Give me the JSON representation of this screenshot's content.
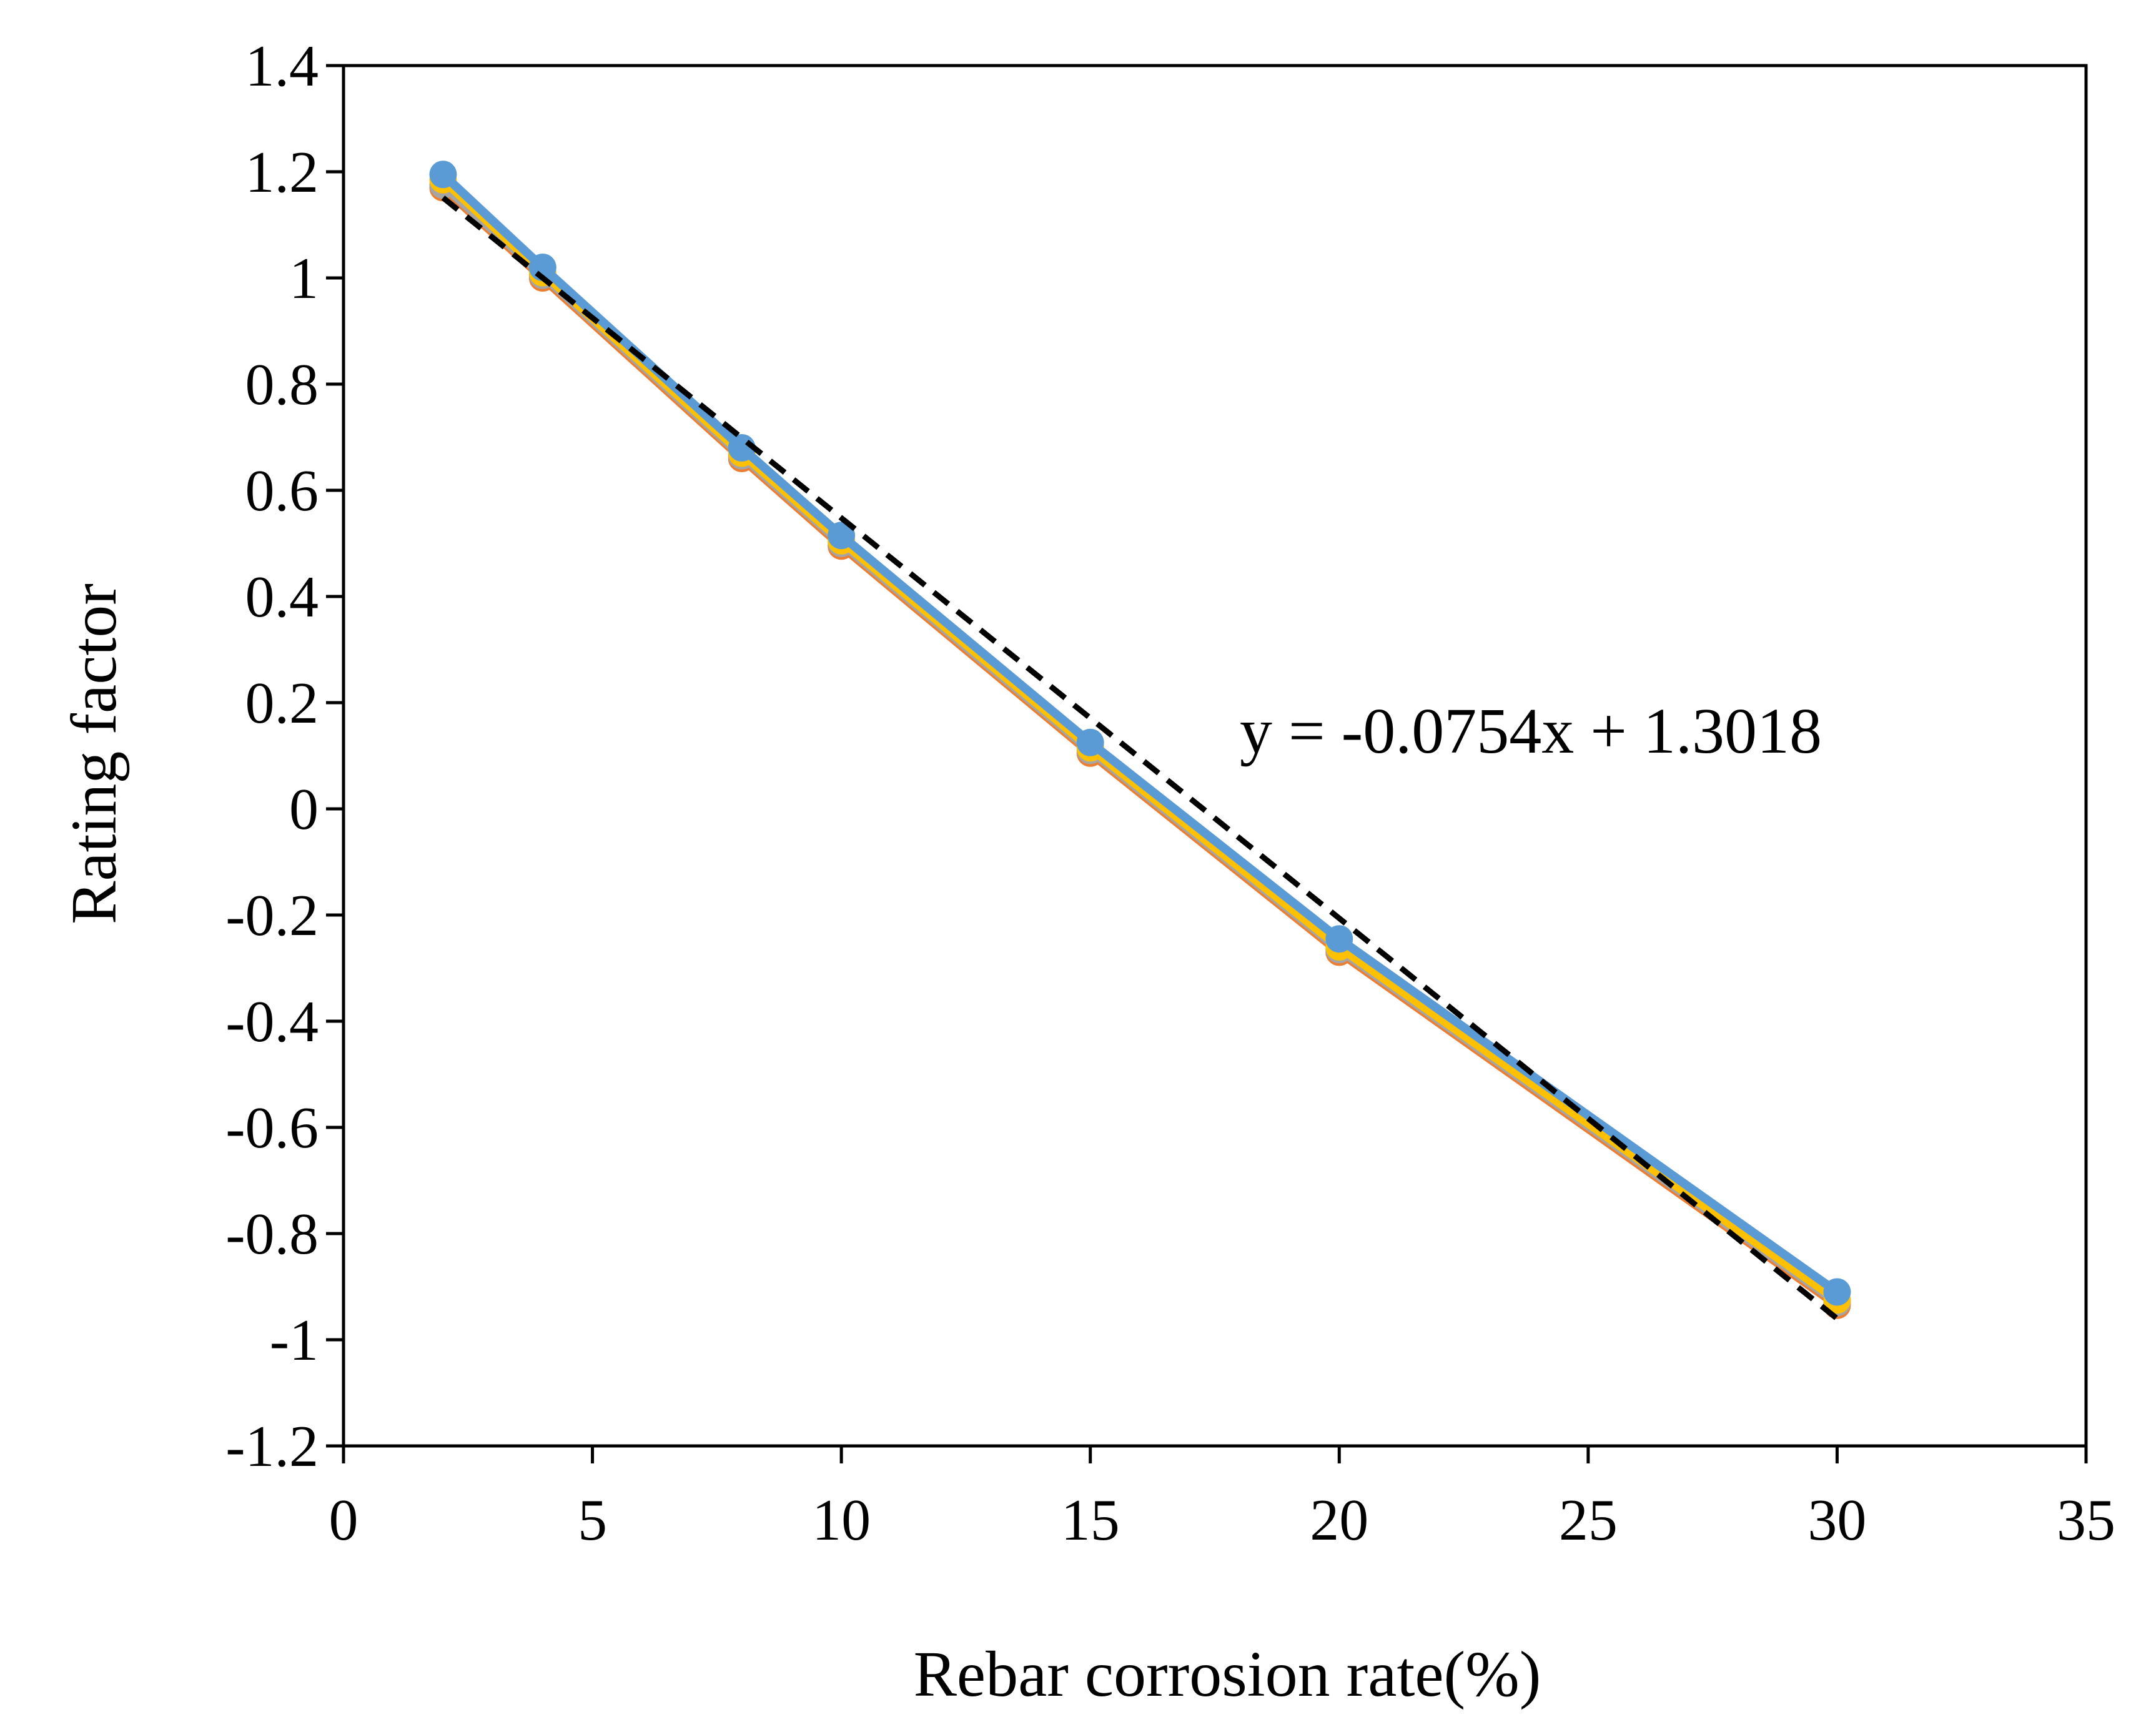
{
  "chart_data": {
    "type": "line",
    "xlabel": "Rebar corrosion rate(%)",
    "ylabel": "Rating factor",
    "xlim": [
      0,
      35
    ],
    "ylim": [
      -1.2,
      1.4
    ],
    "xticks": [
      0,
      5,
      10,
      15,
      20,
      25,
      30,
      35
    ],
    "yticks": [
      -1.2,
      -1,
      -0.8,
      -0.6,
      -0.4,
      -0.2,
      0,
      0.2,
      0.4,
      0.6,
      0.8,
      1,
      1.2,
      1.4
    ],
    "xtick_labels": [
      "0",
      "5",
      "10",
      "15",
      "20",
      "25",
      "30",
      "35"
    ],
    "ytick_labels": [
      "-1.2",
      "-1",
      "-0.8",
      "-0.6",
      "-0.4",
      "-0.2",
      "0",
      "0.2",
      "0.4",
      "0.6",
      "0.8",
      "1",
      "1.2",
      "1.4"
    ],
    "x": [
      2,
      4,
      8,
      10,
      15,
      20,
      30
    ],
    "series": [
      {
        "color": "#ED7D31",
        "values": [
          1.17,
          1.0,
          0.66,
          0.495,
          0.105,
          -0.27,
          -0.935
        ]
      },
      {
        "color": "#A5A5A5",
        "values": [
          1.175,
          1.005,
          0.665,
          0.5,
          0.11,
          -0.265,
          -0.93
        ]
      },
      {
        "color": "#FFC000",
        "values": [
          1.185,
          1.01,
          0.67,
          0.505,
          0.115,
          -0.26,
          -0.925
        ]
      },
      {
        "color": "#5B9BD5",
        "values": [
          1.195,
          1.02,
          0.68,
          0.515,
          0.125,
          -0.245,
          -0.91
        ]
      }
    ],
    "trendline": {
      "style": "dashed",
      "color": "#000000",
      "slope": -0.0754,
      "intercept": 1.3018,
      "x_range": [
        2,
        30
      ],
      "equation_label": "y = -0.0754x + 1.3018"
    },
    "grid": false,
    "legend": "none"
  }
}
